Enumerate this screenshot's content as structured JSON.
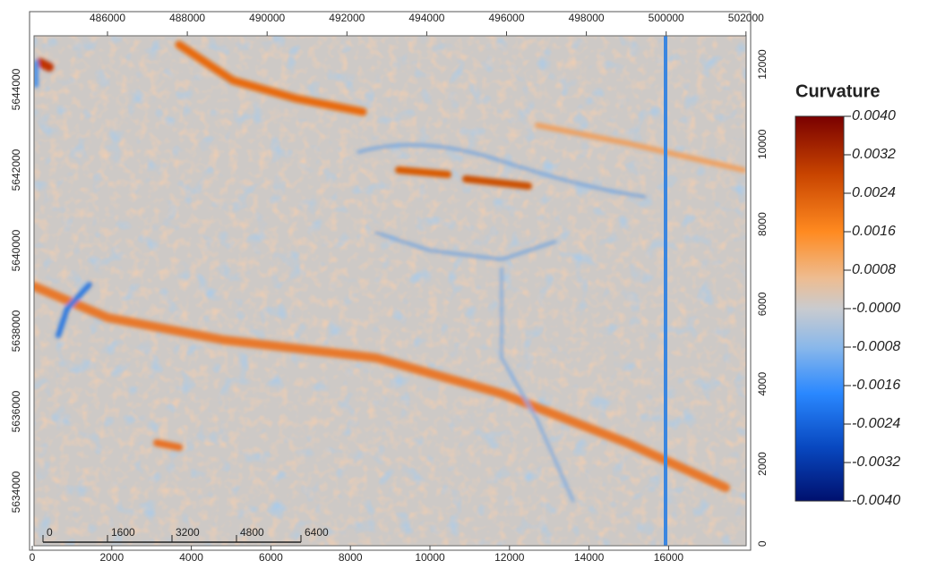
{
  "map": {
    "top_axis_labels": [
      "486000",
      "488000",
      "490000",
      "492000",
      "494000",
      "496000",
      "498000",
      "500000",
      "502000"
    ],
    "bottom_axis_labels": [
      "0",
      "2000",
      "4000",
      "6000",
      "8000",
      "10000",
      "12000",
      "14000",
      "16000"
    ],
    "left_axis_labels": [
      "5644000",
      "5642000",
      "5640000",
      "5638000",
      "5636000",
      "5634000"
    ],
    "right_axis_labels": [
      "12000",
      "10000",
      "8000",
      "6000",
      "4000",
      "2000",
      "0"
    ],
    "scale_bar_labels": [
      "0",
      "1600",
      "3200",
      "4800",
      "6400"
    ]
  },
  "legend": {
    "title": "Curvature",
    "labels": [
      "0.0040",
      "0.0032",
      "0.0024",
      "0.0016",
      "0.0008",
      "-0.0000",
      "-0.0008",
      "-0.0016",
      "-0.0024",
      "-0.0032",
      "-0.0040"
    ]
  }
}
